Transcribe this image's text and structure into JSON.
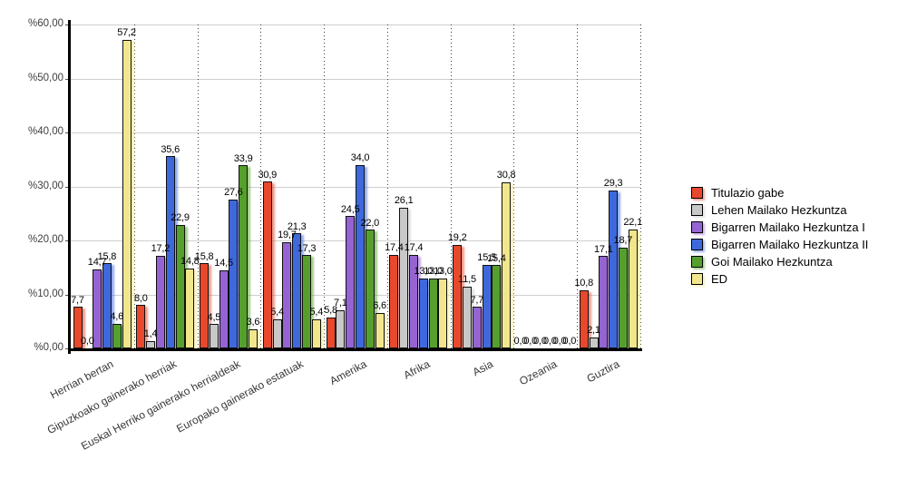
{
  "chart_data": {
    "type": "bar",
    "title": "",
    "xlabel": "",
    "ylabel": "",
    "grid": true,
    "legend_position": "right",
    "value_label_decimal_separator": ",",
    "categories": [
      "Herrian bertan",
      "Gipuzkoako gainerako herriak",
      "Euskal Herriko gainerako herrialdeak",
      "Europako gainerako estatuak",
      "Amerika",
      "Afrika",
      "Asia",
      "Ozeania",
      "Guztira"
    ],
    "series": [
      {
        "name": "Titulazio gabe",
        "color": "#e8482c",
        "values": [
          7.7,
          8.0,
          15.8,
          30.9,
          5.8,
          17.4,
          19.2,
          0.0,
          10.8
        ]
      },
      {
        "name": "Lehen Mailako Hezkuntza",
        "color": "#c8c8c8",
        "values": [
          0.0,
          1.4,
          4.5,
          5.4,
          7.1,
          26.1,
          11.5,
          0.0,
          2.1
        ]
      },
      {
        "name": "Bigarren Mailako Hezkuntza I",
        "color": "#9564d2",
        "values": [
          14.7,
          17.2,
          14.5,
          19.7,
          24.5,
          17.4,
          7.7,
          0.0,
          17.1
        ]
      },
      {
        "name": "Bigarren Mailako Hezkuntza II",
        "color": "#3e69dc",
        "values": [
          15.8,
          35.6,
          27.6,
          21.3,
          34.0,
          13.0,
          15.5,
          0.0,
          29.3
        ]
      },
      {
        "name": "Goi Mailako Hezkuntza",
        "color": "#55a02d",
        "values": [
          4.6,
          22.9,
          33.9,
          17.3,
          22.0,
          13.0,
          15.4,
          0.0,
          18.7
        ]
      },
      {
        "name": "ED",
        "color": "#f2e68c",
        "values": [
          57.2,
          14.8,
          3.6,
          5.4,
          6.6,
          13.0,
          30.8,
          0.0,
          22.1
        ]
      }
    ],
    "y_axis": {
      "min": 0,
      "max": 60,
      "step": 10,
      "tick_labels": [
        "%0,00",
        "%10,00",
        "%20,00",
        "%30,00",
        "%40,00",
        "%50,00",
        "%60,00"
      ]
    }
  }
}
